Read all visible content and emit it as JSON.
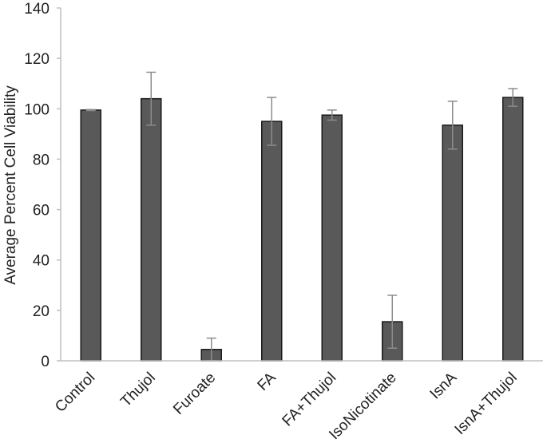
{
  "chart_data": {
    "type": "bar",
    "title": "",
    "xlabel": "",
    "ylabel": "Average Percent Cell Viability",
    "ylim": [
      0,
      140
    ],
    "yticks": [
      0,
      20,
      40,
      60,
      80,
      100,
      120,
      140
    ],
    "grid": false,
    "legend": "none",
    "categories": [
      "Control",
      "Thujol",
      "Furoate",
      "FA",
      "FA+Thujol",
      "IsoNicotinate",
      "IsnA",
      "IsnA+Thujol"
    ],
    "values": [
      99.5,
      104,
      4.5,
      95,
      97.5,
      15.5,
      93.5,
      104.5
    ],
    "errors": [
      0.2,
      10.5,
      4.5,
      9.5,
      2,
      10.5,
      9.5,
      3.5
    ],
    "colors": {
      "bar_fill": "#595959",
      "bar_stroke": "#1a1a1a",
      "error_bar": "#8c8c8c",
      "axis": "#bfbfbf",
      "text": "#222222"
    }
  }
}
